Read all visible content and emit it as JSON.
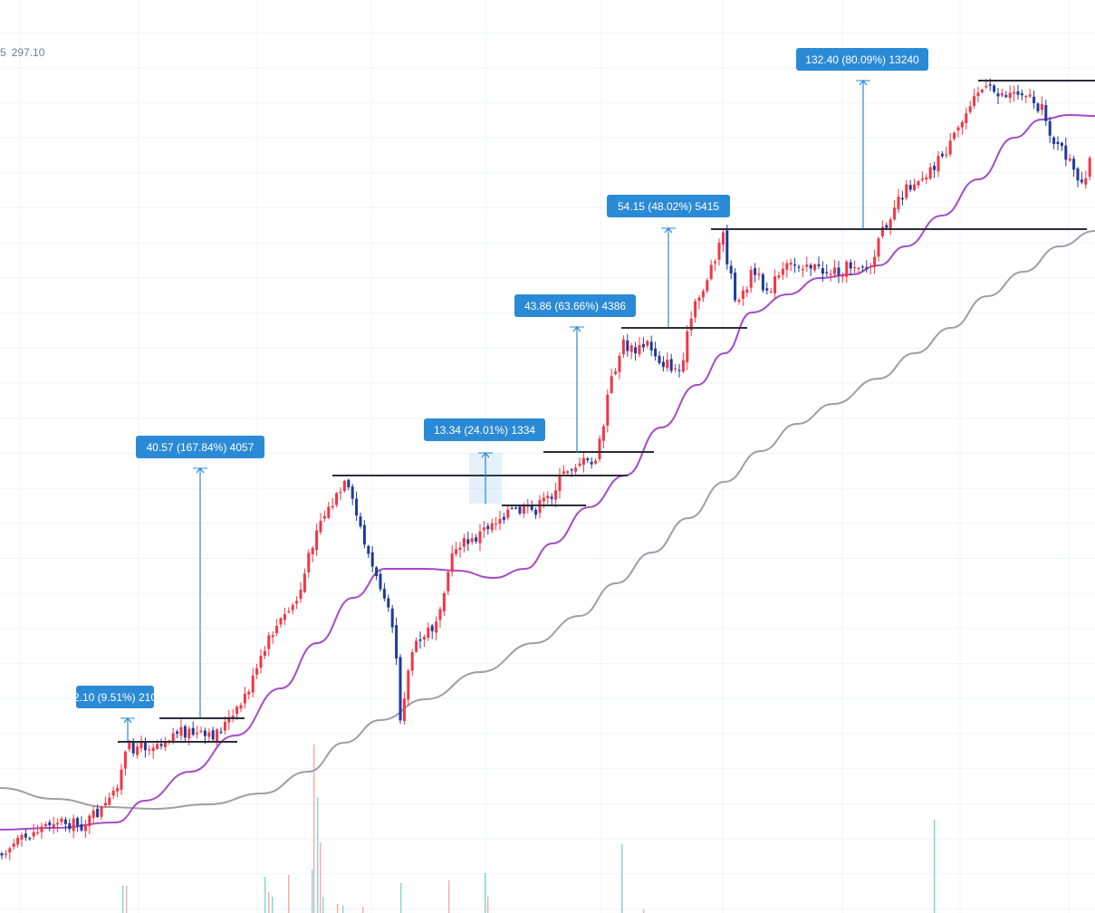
{
  "legend": {
    "fragment": "5",
    "value": "297.10"
  },
  "colors": {
    "up": "#f23645",
    "down": "#1e3a9a",
    "ma_fast": "#a64bc8",
    "ma_slow": "#a19da6",
    "grid": "#f0f3fa",
    "level_line": "#2a2e39",
    "measure": "#2a8ad6",
    "label_bg": "#2a8ad6",
    "vol_up": "#f7a9a8",
    "vol_down": "#7fd6d0"
  },
  "chart_data": {
    "type": "candlestick",
    "grid": true,
    "price_moves": [
      {
        "label": "2.10 (9.51%) 210"
      },
      {
        "label": "40.57 (167.84%) 4057"
      },
      {
        "label": "13.34 (24.01%) 1334"
      },
      {
        "label": "43.86 (63.66%) 4386"
      },
      {
        "label": "54.15 (48.02%) 5415"
      },
      {
        "label": "132.40 (80.09%) 13240"
      }
    ],
    "series": [
      {
        "kind": "candles",
        "color_up": "#f23645",
        "color_down": "#1e3a9a"
      },
      {
        "kind": "moving_average",
        "color": "#a64bc8"
      },
      {
        "kind": "moving_average",
        "color": "#a19da6"
      },
      {
        "kind": "volume"
      }
    ]
  }
}
